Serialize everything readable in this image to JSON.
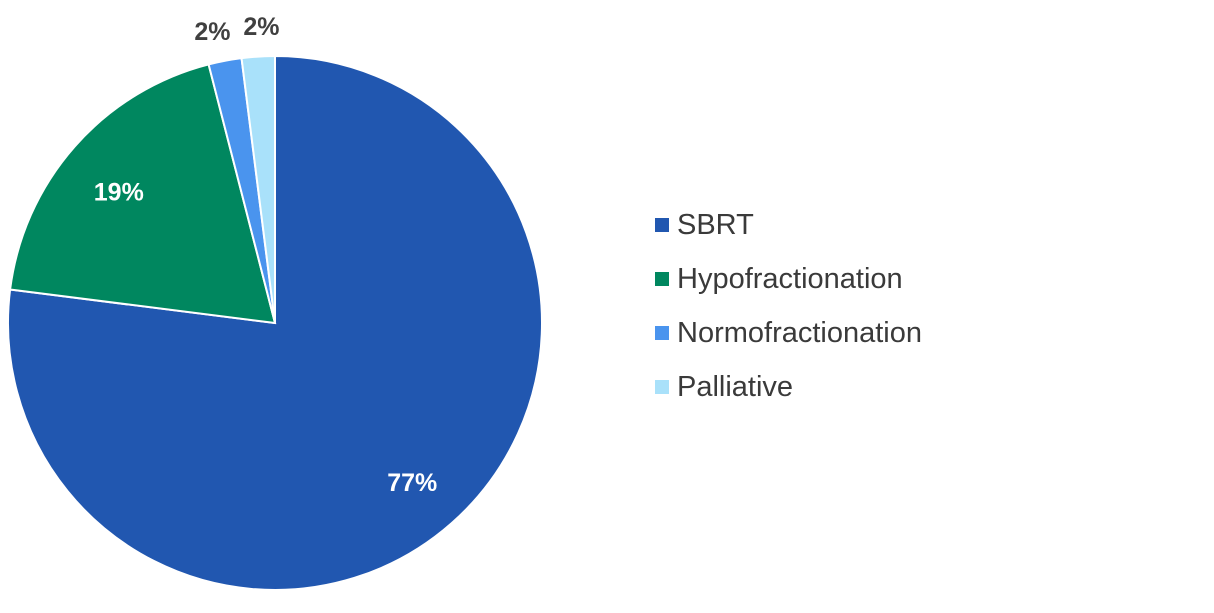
{
  "chart_data": {
    "type": "pie",
    "title": "",
    "slices": [
      {
        "label": "SBRT",
        "value": 77,
        "display": "77%",
        "color": "#2157b0",
        "label_color": "#ffffff"
      },
      {
        "label": "Hypofractionation",
        "value": 19,
        "display": "19%",
        "color": "#00875f",
        "label_color": "#ffffff"
      },
      {
        "label": "Normofractionation",
        "value": 2,
        "display": "2%",
        "color": "#4a94ee",
        "label_color": "#404040"
      },
      {
        "label": "Palliative",
        "value": 2,
        "display": "2%",
        "color": "#a9e1fa",
        "label_color": "#404040"
      }
    ],
    "start": "12 o'clock",
    "direction": "clockwise",
    "legend_position": "right"
  }
}
